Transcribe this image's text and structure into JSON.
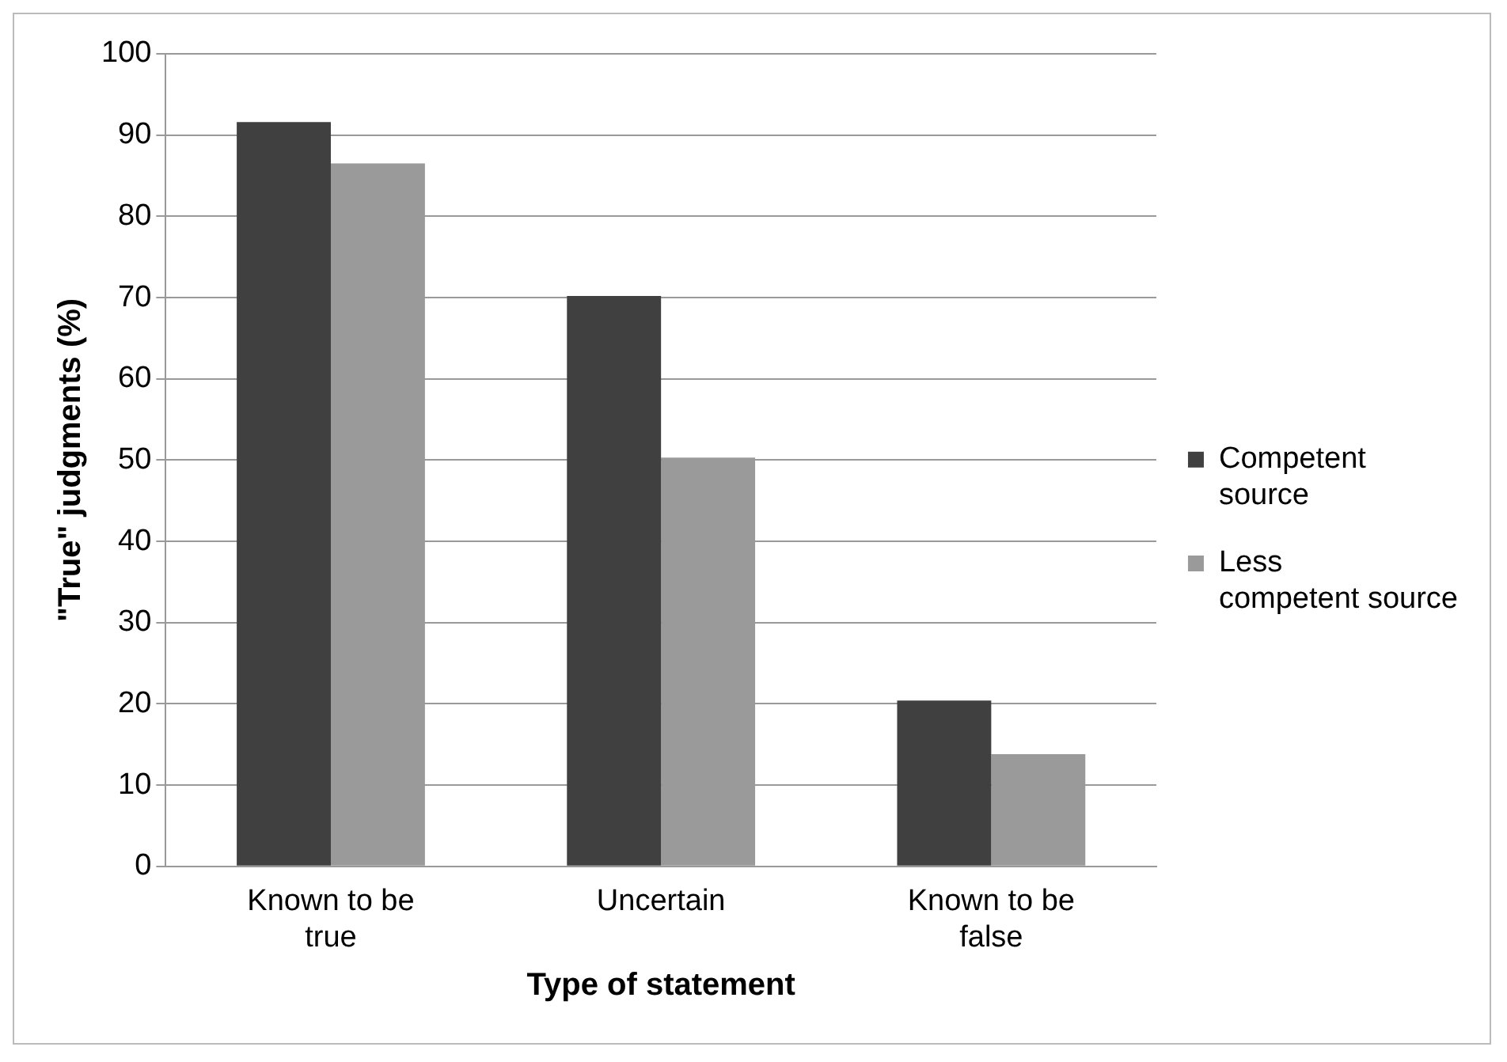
{
  "chart_data": {
    "type": "bar",
    "xlabel": "Type of statement",
    "ylabel": "\"True\" judgments (%)",
    "categories": [
      "Known to be true",
      "Uncertain",
      "Known to be false"
    ],
    "series": [
      {
        "name": "Competent source",
        "color": "#404040",
        "values": [
          91.6,
          70.2,
          20.4
        ]
      },
      {
        "name": "Less competent source",
        "color": "#9a9a9a",
        "values": [
          86.5,
          50.3,
          13.8
        ]
      }
    ],
    "ylim": [
      0,
      100
    ],
    "yticks": [
      0,
      10,
      20,
      30,
      40,
      50,
      60,
      70,
      80,
      90,
      100
    ],
    "grid": "y",
    "legend": "right"
  }
}
